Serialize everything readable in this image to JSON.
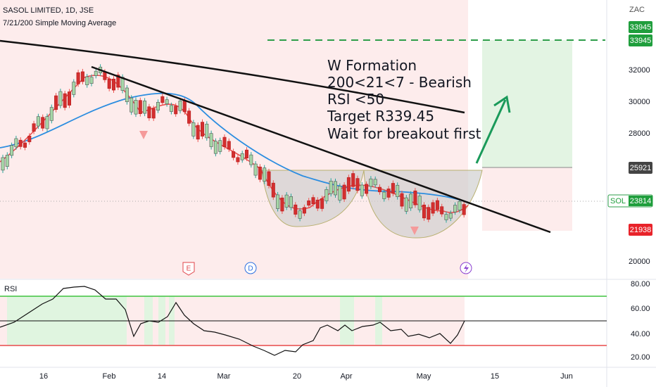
{
  "header": {
    "title": "SASOL LIMITED, 1D, JSE",
    "indicator": "7/21/200 Simple Moving Average"
  },
  "annotation": [
    "W Formation",
    "200<21<7 - Bearish",
    "RSI <50",
    "Target R339.45",
    "Wait for breakout first"
  ],
  "price_axis": {
    "unit": "ZAC",
    "labels": [
      "32000",
      "30000",
      "28000",
      "20000"
    ]
  },
  "price_tags": [
    {
      "label": "33945"
    },
    {
      "label": "33945"
    },
    {
      "label": "25921"
    },
    {
      "name": "SOL",
      "label": "23814"
    },
    {
      "label": "21938"
    }
  ],
  "rsi": {
    "title": "RSI",
    "labels": [
      "80.00",
      "60.00",
      "40.00",
      "20.00"
    ]
  },
  "time_axis": [
    "16",
    "Feb",
    "14",
    "Mar",
    "20",
    "Apr",
    "May",
    "15",
    "Jun"
  ],
  "events": [
    "E",
    "D"
  ]
}
